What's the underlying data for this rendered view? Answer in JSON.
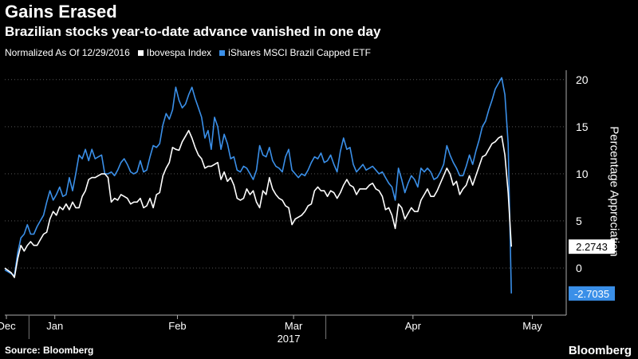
{
  "header": {
    "title": "Gains Erased",
    "subtitle": "Brazilian stocks year-to-date advance vanished in one day"
  },
  "legend": {
    "note": "Normalized As Of 12/29/2016",
    "entries": [
      {
        "label": "Ibovespa Index",
        "color": "#ffffff"
      },
      {
        "label": "iShares MSCI Brazil Capped ETF",
        "color": "#3a8fe8"
      }
    ]
  },
  "footer": {
    "source": "Source: Bloomberg",
    "brand": "Bloomberg"
  },
  "chart_data": {
    "type": "line",
    "title": "Gains Erased",
    "subtitle": "Brazilian stocks year-to-date advance vanished in one day",
    "ylabel": "Percentage Appreciation",
    "ylim": [
      -5,
      21
    ],
    "yticks": [
      0,
      5,
      10,
      15,
      20
    ],
    "xtick_labels": [
      "Dec",
      "Jan",
      "Feb",
      "Mar",
      "Apr",
      "May"
    ],
    "xtick_positions": [
      0.5,
      15.5,
      53.5,
      89.5,
      126.5,
      163.5
    ],
    "x_year_label": "2017",
    "x_range": [
      0,
      174
    ],
    "grid": "horizontal-dotted",
    "legend_position": "top-left",
    "end_labels": [
      "2.2743",
      "-2.7035"
    ],
    "series": [
      {
        "name": "Ibovespa Index",
        "color": "#ffffff",
        "points": [
          [
            0,
            0
          ],
          [
            2,
            -0.5
          ],
          [
            3,
            -1
          ],
          [
            4,
            1
          ],
          [
            5,
            2.4
          ],
          [
            6,
            1.8
          ],
          [
            7,
            2.4
          ],
          [
            8,
            2.8
          ],
          [
            9,
            2.4
          ],
          [
            10,
            2.4
          ],
          [
            11,
            3
          ],
          [
            12,
            3.6
          ],
          [
            13,
            3.8
          ],
          [
            14,
            5.2
          ],
          [
            15,
            6
          ],
          [
            16,
            5.6
          ],
          [
            17,
            6.5
          ],
          [
            18,
            6.2
          ],
          [
            19,
            6.8
          ],
          [
            20,
            6.2
          ],
          [
            21,
            7
          ],
          [
            22,
            6.4
          ],
          [
            23,
            6.4
          ],
          [
            24,
            7.6
          ],
          [
            25,
            8.2
          ],
          [
            26,
            9.4
          ],
          [
            27,
            9.6
          ],
          [
            28,
            9.6
          ],
          [
            29,
            9.8
          ],
          [
            30,
            10
          ],
          [
            31,
            10
          ],
          [
            32,
            9.6
          ],
          [
            33,
            7
          ],
          [
            34,
            7.4
          ],
          [
            35,
            7.2
          ],
          [
            36,
            7.8
          ],
          [
            37,
            7.6
          ],
          [
            38,
            7.4
          ],
          [
            39,
            6.8
          ],
          [
            40,
            7
          ],
          [
            41,
            7
          ],
          [
            42,
            7.4
          ],
          [
            43,
            6.4
          ],
          [
            44,
            6.6
          ],
          [
            45,
            7.4
          ],
          [
            46,
            6.4
          ],
          [
            47,
            7.8
          ],
          [
            48,
            8
          ],
          [
            49,
            9.8
          ],
          [
            50,
            10.6
          ],
          [
            51,
            11.2
          ],
          [
            52,
            12.8
          ],
          [
            53,
            12.6
          ],
          [
            54,
            12.5
          ],
          [
            55,
            13.4
          ],
          [
            56,
            14
          ],
          [
            57,
            14.6
          ],
          [
            58,
            13.8
          ],
          [
            59,
            12.8
          ],
          [
            60,
            12
          ],
          [
            61,
            11.6
          ],
          [
            62,
            10.6
          ],
          [
            63,
            10.8
          ],
          [
            64,
            10.8
          ],
          [
            65,
            11
          ],
          [
            66,
            11.2
          ],
          [
            67,
            9.4
          ],
          [
            68,
            10.2
          ],
          [
            69,
            9.2
          ],
          [
            70,
            9.6
          ],
          [
            71,
            8.8
          ],
          [
            72,
            7.4
          ],
          [
            73,
            7.2
          ],
          [
            74,
            7.4
          ],
          [
            75,
            8.4
          ],
          [
            76,
            7.8
          ],
          [
            77,
            8.2
          ],
          [
            78,
            7
          ],
          [
            79,
            6.4
          ],
          [
            80,
            8.2
          ],
          [
            81,
            7.8
          ],
          [
            82,
            9.6
          ],
          [
            83,
            8.4
          ],
          [
            84,
            7.8
          ],
          [
            85,
            7.4
          ],
          [
            86,
            7.2
          ],
          [
            87,
            6.6
          ],
          [
            88,
            6.4
          ],
          [
            89,
            4.6
          ],
          [
            90,
            5.2
          ],
          [
            91,
            5.4
          ],
          [
            92,
            5.6
          ],
          [
            93,
            6
          ],
          [
            94,
            6.6
          ],
          [
            95,
            6.8
          ],
          [
            96,
            8.2
          ],
          [
            97,
            8.6
          ],
          [
            98,
            8.2
          ],
          [
            99,
            8.2
          ],
          [
            100,
            7.6
          ],
          [
            101,
            8.2
          ],
          [
            102,
            8
          ],
          [
            103,
            7.4
          ],
          [
            104,
            8
          ],
          [
            105,
            8.8
          ],
          [
            106,
            9.4
          ],
          [
            107,
            8.8
          ],
          [
            108,
            8.6
          ],
          [
            109,
            7.8
          ],
          [
            110,
            8.4
          ],
          [
            111,
            8.4
          ],
          [
            112,
            8.4
          ],
          [
            113,
            8.8
          ],
          [
            114,
            9
          ],
          [
            115,
            8.4
          ],
          [
            116,
            8.2
          ],
          [
            117,
            7.6
          ],
          [
            118,
            6.2
          ],
          [
            119,
            6.4
          ],
          [
            120,
            5.6
          ],
          [
            121,
            4.2
          ],
          [
            122,
            6.8
          ],
          [
            123,
            6.4
          ],
          [
            124,
            5.2
          ],
          [
            125,
            5.8
          ],
          [
            126,
            6.4
          ],
          [
            127,
            6
          ],
          [
            128,
            6
          ],
          [
            129,
            7.2
          ],
          [
            130,
            7.8
          ],
          [
            131,
            8.4
          ],
          [
            132,
            7.6
          ],
          [
            133,
            7.6
          ],
          [
            134,
            8.2
          ],
          [
            135,
            9
          ],
          [
            136,
            9.8
          ],
          [
            137,
            10.6
          ],
          [
            138,
            10
          ],
          [
            139,
            8.8
          ],
          [
            140,
            9.2
          ],
          [
            141,
            7.8
          ],
          [
            142,
            8.4
          ],
          [
            143,
            8.8
          ],
          [
            144,
            9.8
          ],
          [
            145,
            8.8
          ],
          [
            146,
            9.8
          ],
          [
            147,
            10.8
          ],
          [
            148,
            11.8
          ],
          [
            149,
            12
          ],
          [
            150,
            12.6
          ],
          [
            151,
            13.2
          ],
          [
            152,
            13.4
          ],
          [
            153,
            13.8
          ],
          [
            154,
            14
          ],
          [
            155,
            12
          ],
          [
            156,
            8
          ],
          [
            157,
            2.27
          ]
        ]
      },
      {
        "name": "iShares MSCI Brazil Capped ETF",
        "color": "#3a8fe8",
        "points": [
          [
            0,
            -0.2
          ],
          [
            2,
            -0.6
          ],
          [
            3,
            -0.8
          ],
          [
            4,
            1.6
          ],
          [
            5,
            3.2
          ],
          [
            6,
            3.6
          ],
          [
            7,
            4.6
          ],
          [
            8,
            3.6
          ],
          [
            9,
            3.6
          ],
          [
            10,
            4.4
          ],
          [
            11,
            5
          ],
          [
            12,
            5.6
          ],
          [
            13,
            7
          ],
          [
            14,
            8.2
          ],
          [
            15,
            7.2
          ],
          [
            16,
            7.8
          ],
          [
            17,
            8.6
          ],
          [
            18,
            7.6
          ],
          [
            19,
            7.8
          ],
          [
            20,
            9.6
          ],
          [
            21,
            8.2
          ],
          [
            22,
            10
          ],
          [
            23,
            12
          ],
          [
            24,
            11.6
          ],
          [
            25,
            12.6
          ],
          [
            26,
            11.4
          ],
          [
            27,
            12.6
          ],
          [
            28,
            11.6
          ],
          [
            29,
            11.8
          ],
          [
            30,
            12
          ],
          [
            31,
            10
          ],
          [
            32,
            10
          ],
          [
            33,
            10.2
          ],
          [
            34,
            9.8
          ],
          [
            35,
            10.4
          ],
          [
            36,
            11.2
          ],
          [
            37,
            11.6
          ],
          [
            38,
            11
          ],
          [
            39,
            10.2
          ],
          [
            40,
            10
          ],
          [
            41,
            10.2
          ],
          [
            42,
            11.4
          ],
          [
            43,
            10.2
          ],
          [
            44,
            10.4
          ],
          [
            45,
            11.8
          ],
          [
            46,
            13
          ],
          [
            47,
            12.8
          ],
          [
            48,
            13.2
          ],
          [
            49,
            15.2
          ],
          [
            50,
            16.4
          ],
          [
            51,
            15.8
          ],
          [
            52,
            16.8
          ],
          [
            53,
            19.2
          ],
          [
            54,
            17.8
          ],
          [
            55,
            17
          ],
          [
            56,
            17.4
          ],
          [
            57,
            18.4
          ],
          [
            58,
            19.2
          ],
          [
            59,
            18
          ],
          [
            60,
            17
          ],
          [
            61,
            16
          ],
          [
            62,
            13.8
          ],
          [
            63,
            14.6
          ],
          [
            64,
            12.6
          ],
          [
            65,
            16
          ],
          [
            66,
            15
          ],
          [
            67,
            12.6
          ],
          [
            68,
            14.2
          ],
          [
            69,
            13.2
          ],
          [
            70,
            11.6
          ],
          [
            71,
            11.8
          ],
          [
            72,
            10.4
          ],
          [
            73,
            10.2
          ],
          [
            74,
            10.8
          ],
          [
            75,
            10.6
          ],
          [
            76,
            10
          ],
          [
            77,
            9.4
          ],
          [
            78,
            10.4
          ],
          [
            79,
            13
          ],
          [
            80,
            12
          ],
          [
            81,
            11.8
          ],
          [
            82,
            12.8
          ],
          [
            83,
            11.4
          ],
          [
            84,
            10.8
          ],
          [
            85,
            10.6
          ],
          [
            86,
            10.2
          ],
          [
            87,
            11.8
          ],
          [
            88,
            12.6
          ],
          [
            89,
            10.4
          ],
          [
            90,
            10
          ],
          [
            91,
            9.6
          ],
          [
            92,
            10
          ],
          [
            93,
            9.8
          ],
          [
            94,
            10.4
          ],
          [
            95,
            11.2
          ],
          [
            96,
            11.8
          ],
          [
            97,
            11.6
          ],
          [
            98,
            12.2
          ],
          [
            99,
            11.2
          ],
          [
            100,
            11.4
          ],
          [
            101,
            12
          ],
          [
            102,
            11
          ],
          [
            103,
            10.2
          ],
          [
            104,
            12.4
          ],
          [
            105,
            13.8
          ],
          [
            106,
            12.6
          ],
          [
            107,
            12.8
          ],
          [
            108,
            11
          ],
          [
            109,
            10.2
          ],
          [
            110,
            10.6
          ],
          [
            111,
            11
          ],
          [
            112,
            10.4
          ],
          [
            113,
            10.6
          ],
          [
            114,
            10.8
          ],
          [
            115,
            10.4
          ],
          [
            116,
            10
          ],
          [
            117,
            10.2
          ],
          [
            118,
            9.6
          ],
          [
            119,
            9
          ],
          [
            120,
            8.6
          ],
          [
            121,
            7.2
          ],
          [
            122,
            10.6
          ],
          [
            123,
            9.4
          ],
          [
            124,
            8
          ],
          [
            125,
            9
          ],
          [
            126,
            9.8
          ],
          [
            127,
            9.4
          ],
          [
            128,
            8.6
          ],
          [
            129,
            10.6
          ],
          [
            130,
            10.2
          ],
          [
            131,
            10.6
          ],
          [
            132,
            10.2
          ],
          [
            133,
            9.4
          ],
          [
            134,
            9.6
          ],
          [
            135,
            10.2
          ],
          [
            136,
            11
          ],
          [
            137,
            13
          ],
          [
            138,
            12
          ],
          [
            139,
            11.2
          ],
          [
            140,
            10.6
          ],
          [
            141,
            9.8
          ],
          [
            142,
            9.8
          ],
          [
            143,
            10.8
          ],
          [
            144,
            12
          ],
          [
            145,
            11
          ],
          [
            146,
            12.4
          ],
          [
            147,
            13.6
          ],
          [
            148,
            15
          ],
          [
            149,
            15.6
          ],
          [
            150,
            16.8
          ],
          [
            151,
            17.8
          ],
          [
            152,
            19
          ],
          [
            153,
            19.6
          ],
          [
            154,
            20.2
          ],
          [
            155,
            18.4
          ],
          [
            156,
            13.2
          ],
          [
            157,
            -2.7
          ]
        ]
      }
    ]
  }
}
